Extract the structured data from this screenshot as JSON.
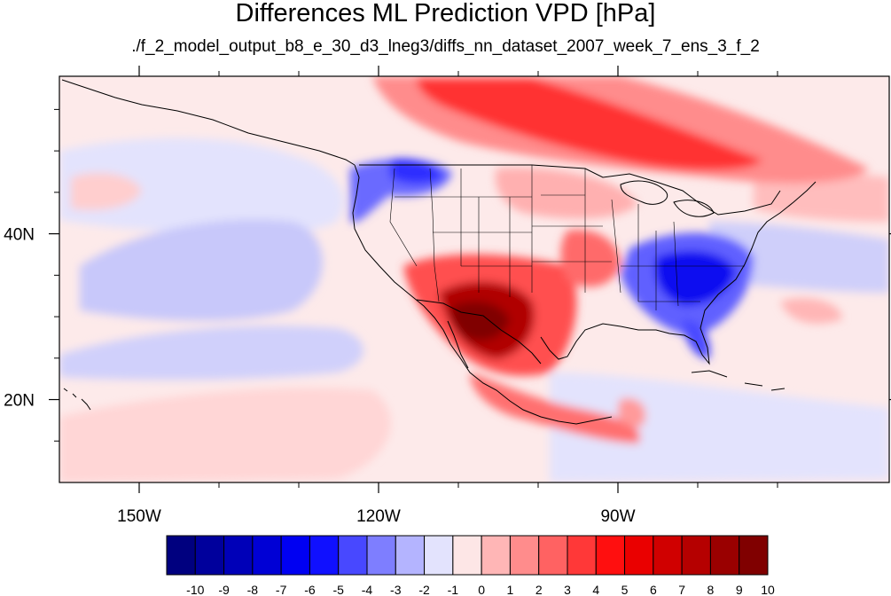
{
  "title": "Differences ML Prediction VPD [hPa]",
  "subtitle": "./f_2_model_output_b8_e_30_d3_lneg3/diffs_nn_dataset_2007_week_7_ens_3_f_2",
  "map": {
    "lon_range": [
      -160,
      -56
    ],
    "lat_range": [
      10,
      59
    ],
    "lon_ticks": [
      {
        "value": -150,
        "label": "150W"
      },
      {
        "value": -120,
        "label": "120W"
      },
      {
        "value": -90,
        "label": "90W"
      }
    ],
    "lat_ticks": [
      {
        "value": 40,
        "label": "40N"
      },
      {
        "value": 20,
        "label": "20N"
      }
    ],
    "minor_lon_ticks": [
      -140,
      -130,
      -110,
      -100,
      -80,
      -70
    ],
    "minor_lat_ticks": [
      15,
      25,
      30,
      35,
      45,
      50,
      55
    ]
  },
  "colorbar": {
    "labels": [
      "-10",
      "-9",
      "-8",
      "-7",
      "-6",
      "-5",
      "-4",
      "-3",
      "-2",
      "-1",
      "0",
      "1",
      "2",
      "3",
      "4",
      "5",
      "6",
      "7",
      "8",
      "9",
      "10"
    ],
    "colors": [
      "#00007f",
      "#00009c",
      "#0000b8",
      "#0000d5",
      "#0000f2",
      "#1010ff",
      "#4848ff",
      "#7e7eff",
      "#b4b4ff",
      "#e3e3fd",
      "#fde6e6",
      "#ffb6b6",
      "#ff8c8c",
      "#ff6262",
      "#ff3838",
      "#ff0f0f",
      "#ea0000",
      "#d00000",
      "#b50000",
      "#9a0000",
      "#800000"
    ]
  }
}
